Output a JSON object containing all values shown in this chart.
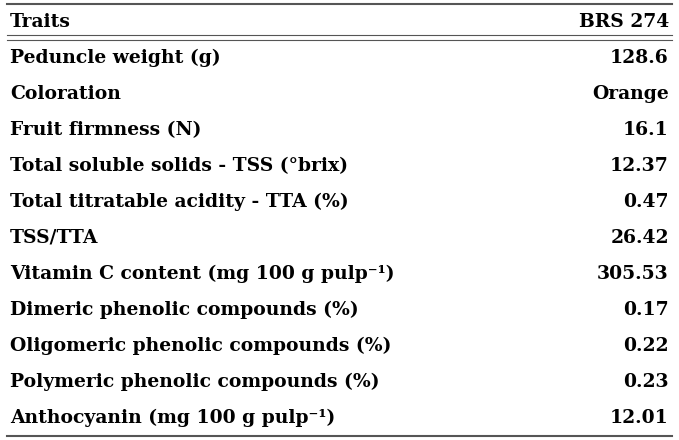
{
  "header": [
    "Traits",
    "BRS 274"
  ],
  "rows": [
    [
      "Peduncle weight (g)",
      "128.6"
    ],
    [
      "Coloration",
      "Orange"
    ],
    [
      "Fruit firmness (N)",
      "16.1"
    ],
    [
      "Total soluble solids - TSS (°brix)",
      "12.37"
    ],
    [
      "Total titratable acidity - TTA (%)",
      "0.47"
    ],
    [
      "TSS/TTA",
      "26.42"
    ],
    [
      "Vitamin C content (mg 100 g pulp⁻¹)",
      "305.53"
    ],
    [
      "Dimeric phenolic compounds (%)",
      "0.17"
    ],
    [
      "Oligomeric phenolic compounds (%)",
      "0.22"
    ],
    [
      "Polymeric phenolic compounds (%)",
      "0.23"
    ],
    [
      "Anthocyanin (mg 100 g pulp⁻¹)",
      "12.01"
    ]
  ],
  "bg_color": "#ffffff",
  "text_color": "#000000",
  "line_color": "#555555",
  "font_size": 13.5,
  "header_font_size": 13.5
}
